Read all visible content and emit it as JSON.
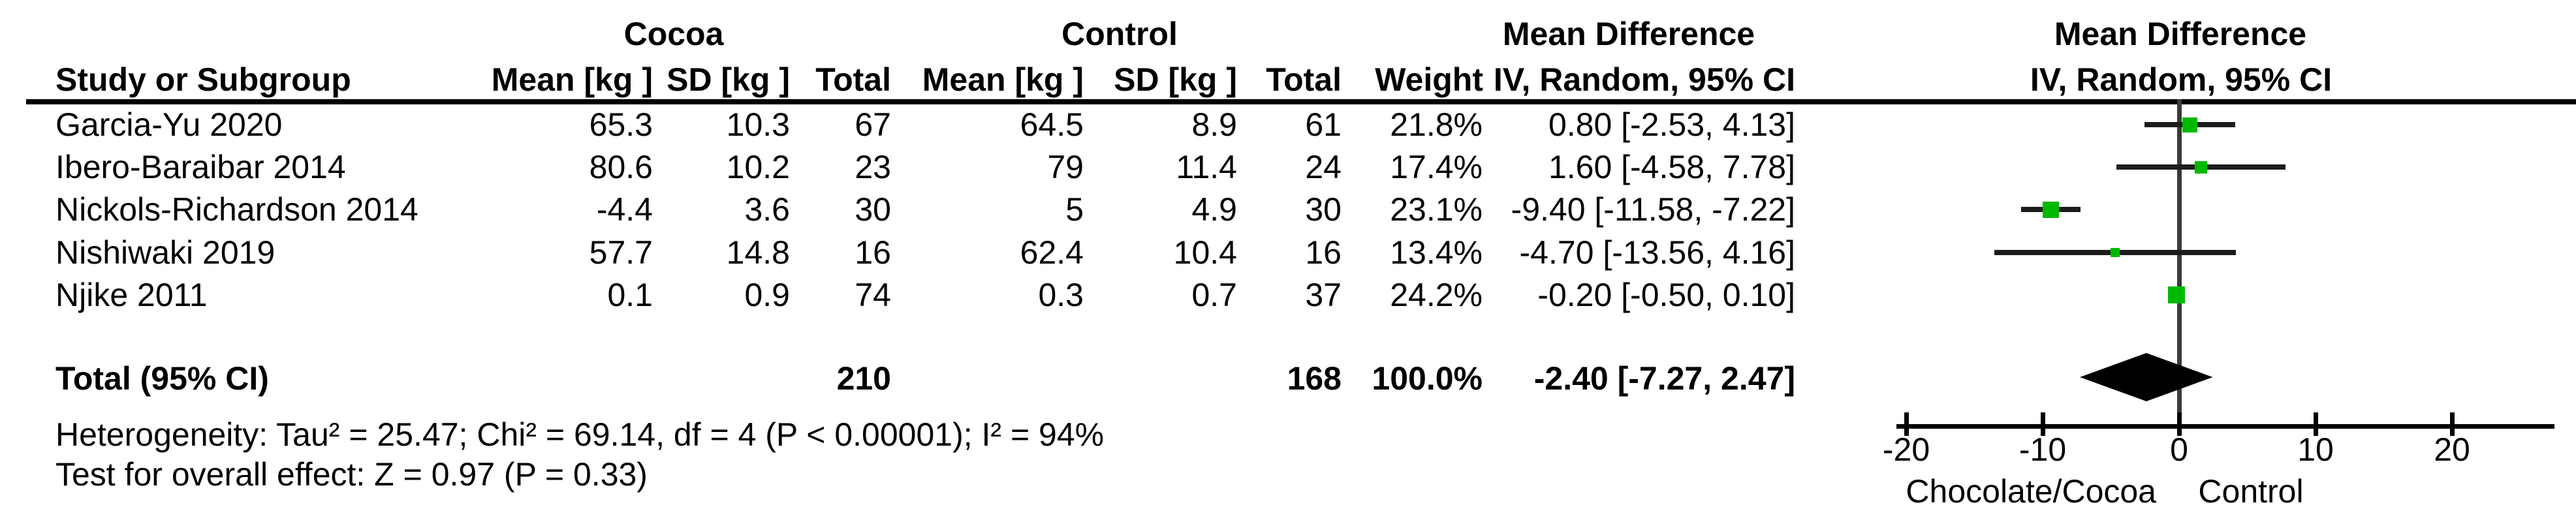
{
  "header": {
    "group1": "Cocoa",
    "group2": "Control",
    "study_col": "Study or Subgroup",
    "mean_col1": "Mean [kg ]",
    "sd_col1": "SD [kg ]",
    "total_col1": "Total",
    "mean_col2": "Mean [kg ]",
    "sd_col2": "SD [kg ]",
    "total_col2": "Total",
    "weight_col": "Weight",
    "md_text_line1": "Mean Difference",
    "md_text_line2": "IV, Random, 95% CI",
    "md_plot_line1": "Mean Difference",
    "md_plot_line2": "IV, Random, 95% CI"
  },
  "rows": [
    {
      "study": "Garcia-Yu 2020",
      "mean1": "65.3",
      "sd1": "10.3",
      "total1": "67",
      "mean2": "64.5",
      "sd2": "8.9",
      "total2": "61",
      "weight": "21.8%",
      "md_ci": "0.80 [-2.53, 4.13]",
      "md": 0.8,
      "ci_low": -2.53,
      "ci_high": 4.13,
      "weight_pct": 21.8
    },
    {
      "study": "Ibero-Baraibar 2014",
      "mean1": "80.6",
      "sd1": "10.2",
      "total1": "23",
      "mean2": "79",
      "sd2": "11.4",
      "total2": "24",
      "weight": "17.4%",
      "md_ci": "1.60 [-4.58, 7.78]",
      "md": 1.6,
      "ci_low": -4.58,
      "ci_high": 7.78,
      "weight_pct": 17.4
    },
    {
      "study": "Nickols-Richardson 2014",
      "mean1": "-4.4",
      "sd1": "3.6",
      "total1": "30",
      "mean2": "5",
      "sd2": "4.9",
      "total2": "30",
      "weight": "23.1%",
      "md_ci": "-9.40 [-11.58, -7.22]",
      "md": -9.4,
      "ci_low": -11.58,
      "ci_high": -7.22,
      "weight_pct": 23.1
    },
    {
      "study": "Nishiwaki 2019",
      "mean1": "57.7",
      "sd1": "14.8",
      "total1": "16",
      "mean2": "62.4",
      "sd2": "10.4",
      "total2": "16",
      "weight": "13.4%",
      "md_ci": "-4.70 [-13.56, 4.16]",
      "md": -4.7,
      "ci_low": -13.56,
      "ci_high": 4.16,
      "weight_pct": 13.4
    },
    {
      "study": "Njike 2011",
      "mean1": "0.1",
      "sd1": "0.9",
      "total1": "74",
      "mean2": "0.3",
      "sd2": "0.7",
      "total2": "37",
      "weight": "24.2%",
      "md_ci": "-0.20 [-0.50, 0.10]",
      "md": -0.2,
      "ci_low": -0.5,
      "ci_high": 0.1,
      "weight_pct": 24.2
    }
  ],
  "totals": {
    "label": "Total (95% CI)",
    "total1": "210",
    "total2": "168",
    "weight": "100.0%",
    "md_ci": "-2.40 [-7.27, 2.47]",
    "md": -2.4,
    "ci_low": -7.27,
    "ci_high": 2.47
  },
  "footnotes": {
    "heterogeneity": "Heterogeneity: Tau² = 25.47; Chi² = 69.14, df = 4 (P < 0.00001); I² = 94%",
    "overall_effect": "Test for overall effect: Z = 0.97 (P = 0.33)"
  },
  "axis": {
    "tick_labels": [
      "-20",
      "-10",
      "0",
      "10",
      "20"
    ],
    "tick_values": [
      -20,
      -10,
      0,
      10,
      20
    ],
    "label_left": "Chocolate/Cocoa",
    "label_right": "Control"
  },
  "colors": {
    "square": "#00b800",
    "diamond": "#000000",
    "ci_line": "#1c1c1c",
    "zero_line": "#3a3a3a",
    "axis": "#000000"
  },
  "chart_data": {
    "type": "scatter",
    "subtype": "forest-plot-meta-analysis",
    "title": "Mean Difference IV, Random, 95% CI",
    "xlabel": "Chocolate/Cocoa (left) vs Control (right)",
    "xlim": [
      -20,
      20
    ],
    "x_ticks": [
      -20,
      -10,
      0,
      10,
      20
    ],
    "studies": [
      "Garcia-Yu 2020",
      "Ibero-Baraibar 2014",
      "Nickols-Richardson 2014",
      "Nishiwaki 2019",
      "Njike 2011"
    ],
    "series": [
      {
        "name": "Mean Difference [kg]",
        "values": [
          0.8,
          1.6,
          -9.4,
          -4.7,
          -0.2
        ]
      },
      {
        "name": "CI lower",
        "values": [
          -2.53,
          -4.58,
          -11.58,
          -13.56,
          -0.5
        ]
      },
      {
        "name": "CI upper",
        "values": [
          4.13,
          7.78,
          -7.22,
          4.16,
          0.1
        ]
      },
      {
        "name": "Weight %",
        "values": [
          21.8,
          17.4,
          23.1,
          13.4,
          24.2
        ]
      },
      {
        "name": "Cocoa mean [kg]",
        "values": [
          65.3,
          80.6,
          -4.4,
          57.7,
          0.1
        ]
      },
      {
        "name": "Cocoa SD [kg]",
        "values": [
          10.3,
          10.2,
          3.6,
          14.8,
          0.9
        ]
      },
      {
        "name": "Cocoa total",
        "values": [
          67,
          23,
          30,
          16,
          74
        ]
      },
      {
        "name": "Control mean [kg]",
        "values": [
          64.5,
          79,
          5,
          62.4,
          0.3
        ]
      },
      {
        "name": "Control SD [kg]",
        "values": [
          8.9,
          11.4,
          4.9,
          10.4,
          0.7
        ]
      },
      {
        "name": "Control total",
        "values": [
          61,
          24,
          30,
          16,
          37
        ]
      }
    ],
    "total": {
      "md": -2.4,
      "ci_low": -7.27,
      "ci_high": 2.47,
      "n_treatment": 210,
      "n_control": 168,
      "weight": 100.0
    },
    "heterogeneity": {
      "tau2": 25.47,
      "chi2": 69.14,
      "df": 4,
      "p": "< 0.00001",
      "i2": "94%"
    },
    "overall_effect": {
      "z": 0.97,
      "p": 0.33
    }
  }
}
